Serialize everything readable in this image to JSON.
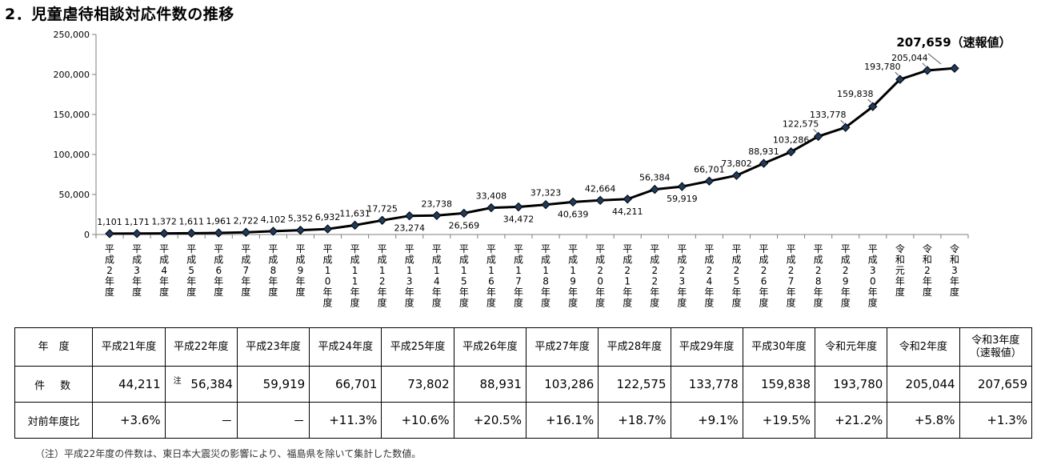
{
  "title": "2．児童虐待相談対応件数の推移",
  "chart_data": {
    "type": "line",
    "title": "2．児童虐待相談対応件数の推移",
    "categories": [
      "平成2年度",
      "平成3年度",
      "平成4年度",
      "平成5年度",
      "平成6年度",
      "平成7年度",
      "平成8年度",
      "平成9年度",
      "平成10年度",
      "平成11年度",
      "平成12年度",
      "平成13年度",
      "平成14年度",
      "平成15年度",
      "平成16年度",
      "平成17年度",
      "平成18年度",
      "平成19年度",
      "平成20年度",
      "平成21年度",
      "平成22年度",
      "平成23年度",
      "平成24年度",
      "平成25年度",
      "平成26年度",
      "平成27年度",
      "平成28年度",
      "平成29年度",
      "平成30年度",
      "令和元年度",
      "令和2年度",
      "令和3年度"
    ],
    "values": [
      1101,
      1171,
      1372,
      1611,
      1961,
      2722,
      4102,
      5352,
      6932,
      11631,
      17725,
      23274,
      23738,
      26569,
      33408,
      34472,
      37323,
      40639,
      42664,
      44211,
      56384,
      59919,
      66701,
      73802,
      88931,
      103286,
      122575,
      133778,
      159838,
      193780,
      205044,
      207659
    ],
    "value_labels": [
      "1,101",
      "1,171",
      "1,372",
      "1,611",
      "1,961",
      "2,722",
      "4,102",
      "5,352",
      "6,932",
      "11,631",
      "17,725",
      "23,274",
      "23,738",
      "26,569",
      "33,408",
      "34,472",
      "37,323",
      "40,639",
      "42,664",
      "44,211",
      "56,384",
      "59,919",
      "66,701",
      "73,802",
      "88,931",
      "103,286",
      "122,575",
      "133,778",
      "159,838",
      "193,780",
      "205,044",
      "207,659（速報値）"
    ],
    "yticks": [
      "0",
      "50,000",
      "100,000",
      "150,000",
      "200,000",
      "250,000"
    ],
    "ylim": [
      0,
      250000
    ],
    "xlabel": "",
    "ylabel": "",
    "marker": "diamond",
    "line_color": "#000000",
    "marker_color": "#1f3a5c"
  },
  "table": {
    "header_label": "年　度",
    "years": [
      "平成21年度",
      "平成22年度",
      "平成23年度",
      "平成24年度",
      "平成25年度",
      "平成26年度",
      "平成27年度",
      "平成28年度",
      "平成29年度",
      "平成30年度",
      "令和元年度",
      "令和2年度",
      "令和3年度（速報値）"
    ],
    "count_label": "件　数",
    "counts": [
      "44,211",
      "56,384",
      "59,919",
      "66,701",
      "73,802",
      "88,931",
      "103,286",
      "122,575",
      "133,778",
      "159,838",
      "193,780",
      "205,044",
      "207,659"
    ],
    "note_mark": "注",
    "ratio_label": "対前年度比",
    "ratios": [
      "+3.6%",
      "－",
      "－",
      "+11.3%",
      "+10.6%",
      "+20.5%",
      "+16.1%",
      "+18.7%",
      "+9.1%",
      "+19.5%",
      "+21.2%",
      "+5.8%",
      "+1.3%"
    ]
  },
  "footnote": "（注）平成22年度の件数は、東日本大震災の影響により、福島県を除いて集計した数値。"
}
